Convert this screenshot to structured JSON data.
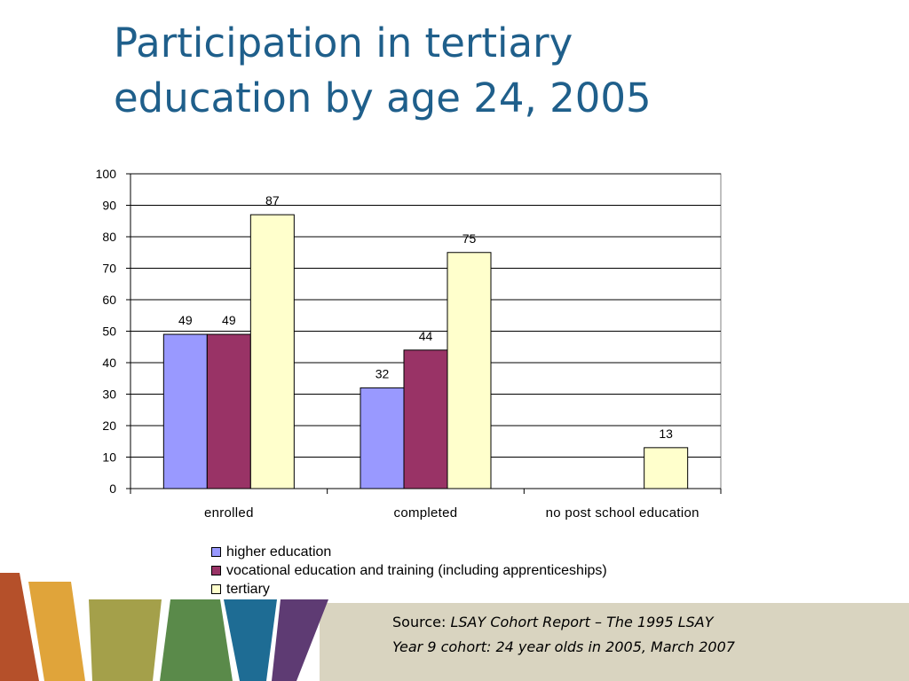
{
  "title": {
    "line1": "Participation in tertiary",
    "line2": "education by age 24, 2005"
  },
  "chart_data": {
    "type": "bar",
    "categories": [
      "enrolled",
      "completed",
      "no post school education"
    ],
    "series": [
      {
        "name": "higher education",
        "color": "#9999ff",
        "values": [
          49,
          32,
          null
        ]
      },
      {
        "name": "vocational education and training (including apprenticeships)",
        "color": "#993366",
        "values": [
          49,
          44,
          null
        ]
      },
      {
        "name": "tertiary",
        "color": "#ffffcc",
        "values": [
          87,
          75,
          13
        ]
      }
    ],
    "ylim": [
      0,
      100
    ],
    "yticks": [
      0,
      10,
      20,
      30,
      40,
      50,
      60,
      70,
      80,
      90,
      100
    ],
    "grid": true,
    "legend": "bottom",
    "data_labels": true
  },
  "source": {
    "prefix": "Source: ",
    "italic_part1": "LSAY  Cohort Report – The 1995 LSAY",
    "line2": "Year 9 cohort: 24 year olds in 2005, March 2007"
  },
  "decoration": {
    "stripe_colors": [
      "#b5502a",
      "#e0a43a",
      "#a4a04a",
      "#5a8a4a",
      "#1e6c94",
      "#5e3b73"
    ]
  }
}
